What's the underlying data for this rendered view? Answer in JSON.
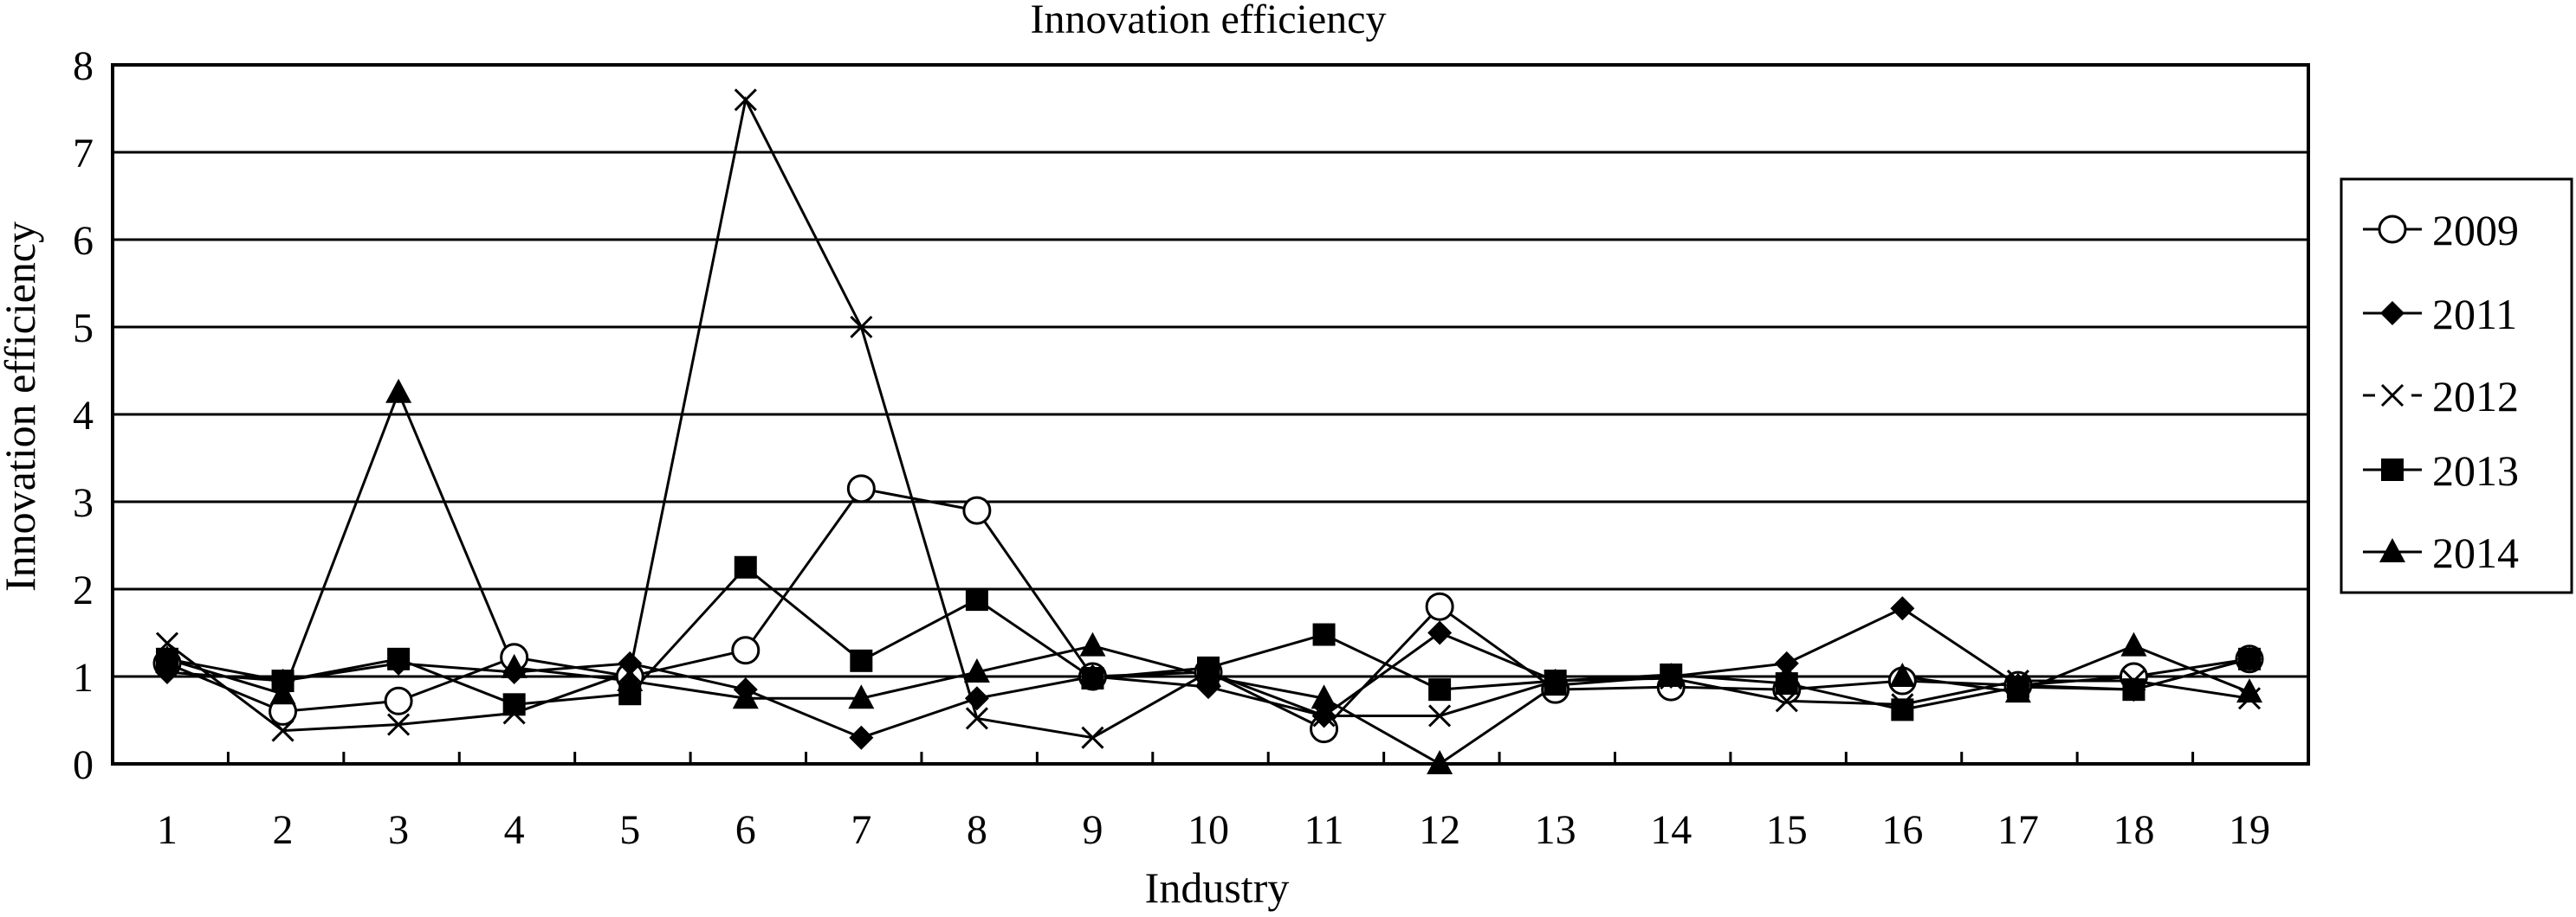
{
  "chart_data": {
    "type": "line",
    "title": "Innovation efficiency",
    "xlabel": "Industry",
    "ylabel": "Innovation efficiency",
    "categories": [
      "1",
      "2",
      "3",
      "4",
      "5",
      "6",
      "7",
      "8",
      "9",
      "10",
      "11",
      "12",
      "13",
      "14",
      "15",
      "16",
      "17",
      "18",
      "19"
    ],
    "y_ticks": [
      "0",
      "1",
      "2",
      "3",
      "4",
      "5",
      "6",
      "7",
      "8"
    ],
    "ylim": [
      0,
      8
    ],
    "grid": true,
    "legend_position": "right",
    "series": [
      {
        "name": "2009",
        "marker": "circle-open",
        "values": [
          1.15,
          0.6,
          0.72,
          1.22,
          1.0,
          1.3,
          3.15,
          2.9,
          1.0,
          1.05,
          0.4,
          1.8,
          0.85,
          0.88,
          0.85,
          0.95,
          0.9,
          1.0,
          1.2
        ]
      },
      {
        "name": "2011",
        "marker": "diamond",
        "values": [
          1.05,
          0.95,
          1.15,
          1.05,
          1.15,
          0.85,
          0.3,
          0.75,
          1.0,
          0.88,
          0.55,
          1.5,
          0.95,
          1.0,
          1.15,
          1.78,
          0.9,
          0.85,
          1.2
        ]
      },
      {
        "name": "2012",
        "marker": "x",
        "values": [
          1.38,
          0.38,
          0.45,
          0.58,
          1.05,
          7.6,
          5.0,
          0.52,
          0.3,
          1.05,
          0.55,
          0.55,
          0.95,
          0.98,
          0.72,
          0.68,
          0.95,
          0.95,
          0.75
        ]
      },
      {
        "name": "2013",
        "marker": "square",
        "values": [
          1.2,
          0.95,
          1.2,
          0.68,
          0.8,
          2.25,
          1.18,
          1.88,
          0.98,
          1.1,
          1.48,
          0.85,
          0.95,
          1.02,
          0.92,
          0.62,
          0.88,
          0.85,
          1.2
        ]
      },
      {
        "name": "2014",
        "marker": "triangle",
        "values": [
          1.2,
          0.8,
          4.25,
          1.1,
          0.95,
          0.75,
          0.75,
          1.05,
          1.35,
          1.0,
          0.75,
          0.0,
          0.9,
          1.0,
          1.0,
          1.0,
          0.82,
          1.35,
          0.82
        ]
      }
    ]
  }
}
